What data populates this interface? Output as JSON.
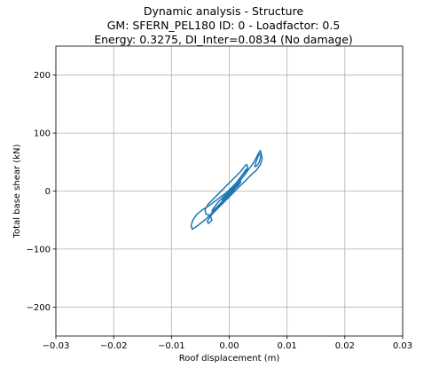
{
  "chart_data": {
    "type": "line",
    "title_lines": [
      "Dynamic analysis - Structure",
      "GM: SFERN_PEL180 ID: 0 -  Loadfactor: 0.5",
      "Energy: 0.3275, DI_Inter=0.0834 (No damage)"
    ],
    "xlabel": "Roof displacement (m)",
    "ylabel": "Total base shear (kN)",
    "xlim": [
      -0.03,
      0.03
    ],
    "ylim": [
      -250,
      250
    ],
    "xticks": [
      -0.03,
      -0.02,
      -0.01,
      0.0,
      0.01,
      0.02,
      0.03
    ],
    "xtick_labels": [
      "−0.03",
      "−0.02",
      "−0.01",
      "0.00",
      "0.01",
      "0.02",
      "0.03"
    ],
    "yticks": [
      -200,
      -100,
      0,
      100,
      200
    ],
    "ytick_labels": [
      "−200",
      "−100",
      "0",
      "100",
      "200"
    ],
    "grid": true,
    "series": [
      {
        "color": "#1f77b4",
        "x": [
          0.0,
          0.0012,
          0.0021,
          0.0028,
          0.0034,
          0.004,
          0.0046,
          0.0051,
          0.0054,
          0.0055,
          0.0052,
          0.0048,
          0.0044,
          0.0046,
          0.005,
          0.0055,
          0.0057,
          0.0054,
          0.0047,
          0.0038,
          0.003,
          0.0022,
          0.0014,
          0.0006,
          -0.0002,
          -0.001,
          -0.0018,
          -0.0026,
          -0.0033,
          -0.0038,
          -0.0036,
          -0.003,
          -0.0033,
          -0.004,
          -0.0042,
          -0.0036,
          -0.0028,
          -0.002,
          -0.0012,
          -0.0004,
          0.0004,
          0.0012,
          0.002,
          0.0026,
          0.003,
          0.0032,
          0.0028,
          0.0022,
          0.0016,
          0.001,
          0.0004,
          -0.0002,
          -0.0008,
          -0.0014,
          -0.002,
          -0.0026,
          -0.0032,
          -0.004,
          -0.005,
          -0.0058,
          -0.0064,
          -0.0066,
          -0.0063,
          -0.0056,
          -0.0046,
          -0.0036,
          -0.0028,
          -0.002,
          -0.0012,
          -0.0004,
          0.0004,
          0.0012,
          0.0018,
          0.0024,
          0.0028,
          0.003,
          0.0027,
          0.002,
          0.0012,
          0.0004,
          -0.0004,
          -0.0012,
          -0.002,
          -0.0026,
          -0.003,
          -0.0027,
          -0.002,
          -0.0012,
          -0.0004,
          0.0004,
          0.001,
          0.0016,
          0.002,
          0.0016,
          0.001,
          0.0004,
          -0.0002,
          -0.0008,
          -0.0012,
          -0.0008,
          -0.0002,
          0.0004,
          0.001,
          0.0014,
          0.001,
          0.0004,
          0.0
        ],
        "y": [
          0,
          12,
          22,
          30,
          38,
          46,
          56,
          66,
          70,
          62,
          50,
          44,
          42,
          50,
          60,
          66,
          56,
          46,
          36,
          28,
          20,
          12,
          4,
          -4,
          -12,
          -20,
          -28,
          -36,
          -44,
          -52,
          -56,
          -50,
          -42,
          -40,
          -32,
          -22,
          -14,
          -6,
          2,
          10,
          18,
          26,
          34,
          42,
          46,
          40,
          30,
          22,
          14,
          6,
          -2,
          -8,
          -14,
          -20,
          -26,
          -32,
          -40,
          -48,
          -56,
          -62,
          -66,
          -60,
          -50,
          -40,
          -32,
          -26,
          -20,
          -14,
          -8,
          -2,
          6,
          14,
          22,
          30,
          36,
          38,
          30,
          20,
          12,
          4,
          -4,
          -12,
          -20,
          -28,
          -34,
          -36,
          -28,
          -20,
          -12,
          -4,
          4,
          10,
          16,
          12,
          6,
          0,
          -6,
          -12,
          -16,
          -10,
          -4,
          2,
          8,
          12,
          6,
          2,
          0
        ]
      }
    ]
  }
}
